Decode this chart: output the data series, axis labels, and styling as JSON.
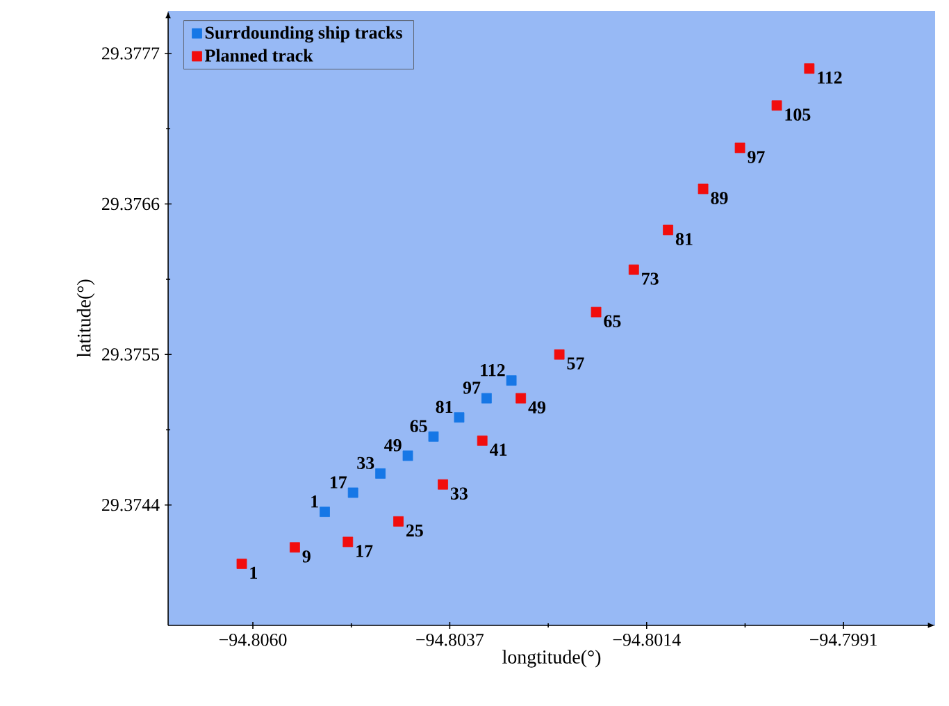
{
  "chart_data": {
    "type": "scatter",
    "xlabel": "longtitude(°)",
    "ylabel": "latitude(°)",
    "xlim": [
      -94.80699,
      -94.79803
    ],
    "ylim": [
      29.37352,
      29.37801
    ],
    "xticks": [
      {
        "value": -94.806,
        "label": "−94.8060"
      },
      {
        "value": -94.8037,
        "label": "−94.8037"
      },
      {
        "value": -94.8014,
        "label": "−94.8014"
      },
      {
        "value": -94.7991,
        "label": "−94.7991"
      }
    ],
    "yticks": [
      29.3744,
      29.3755,
      29.3766,
      29.3777
    ],
    "marker": "square",
    "legend": "top left",
    "series": [
      {
        "name": "Surrdounding ship tracks",
        "color": "#1677e6",
        "x": [
          -94.80516,
          -94.80483,
          -94.80451,
          -94.80419,
          -94.80389,
          -94.80359,
          -94.80327,
          -94.80298
        ],
        "values": [
          29.37435,
          29.37449,
          29.37463,
          29.37476,
          29.3749,
          29.37504,
          29.37518,
          29.37531
        ]
      },
      {
        "name": "Planned track",
        "color": "#f20d0d",
        "x": [
          -94.80613,
          -94.80551,
          -94.80489,
          -94.8043,
          -94.80378,
          -94.80332,
          -94.80287,
          -94.80242,
          -94.80199,
          -94.80155,
          -94.80115,
          -94.80074,
          -94.80031,
          -94.79988,
          -94.7995
        ],
        "values": [
          29.37397,
          29.37409,
          29.37413,
          29.37428,
          29.37455,
          29.37487,
          29.37518,
          29.3755,
          29.37581,
          29.37612,
          29.37641,
          29.37671,
          29.37701,
          29.37732,
          29.37759
        ]
      }
    ],
    "annotations": [
      {
        "text": "1",
        "x": -94.80516,
        "y": 29.37435
      },
      {
        "text": "17",
        "x": -94.80483,
        "y": 29.37449
      },
      {
        "text": "33",
        "x": -94.80451,
        "y": 29.37463
      },
      {
        "text": "49",
        "x": -94.80419,
        "y": 29.37476
      },
      {
        "text": "65",
        "x": -94.80389,
        "y": 29.3749
      },
      {
        "text": "81",
        "x": -94.80359,
        "y": 29.37504
      },
      {
        "text": "97",
        "x": -94.80327,
        "y": 29.37518
      },
      {
        "text": "112",
        "x": -94.80298,
        "y": 29.37531
      },
      {
        "text": "1",
        "x": -94.80613,
        "y": 29.37397
      },
      {
        "text": "9",
        "x": -94.80551,
        "y": 29.37409
      },
      {
        "text": "17",
        "x": -94.80489,
        "y": 29.37413
      },
      {
        "text": "25",
        "x": -94.8043,
        "y": 29.37428
      },
      {
        "text": "33",
        "x": -94.80378,
        "y": 29.37455
      },
      {
        "text": "41",
        "x": -94.80332,
        "y": 29.37487
      },
      {
        "text": "49",
        "x": -94.80287,
        "y": 29.37518
      },
      {
        "text": "57",
        "x": -94.80242,
        "y": 29.3755
      },
      {
        "text": "65",
        "x": -94.80199,
        "y": 29.37581
      },
      {
        "text": "73",
        "x": -94.80155,
        "y": 29.37612
      },
      {
        "text": "81",
        "x": -94.80115,
        "y": 29.37641
      },
      {
        "text": "89",
        "x": -94.80074,
        "y": 29.37671
      },
      {
        "text": "97",
        "x": -94.80031,
        "y": 29.37701
      },
      {
        "text": "105",
        "x": -94.79988,
        "y": 29.37732
      },
      {
        "text": "112",
        "x": -94.7995,
        "y": 29.37759
      }
    ]
  }
}
